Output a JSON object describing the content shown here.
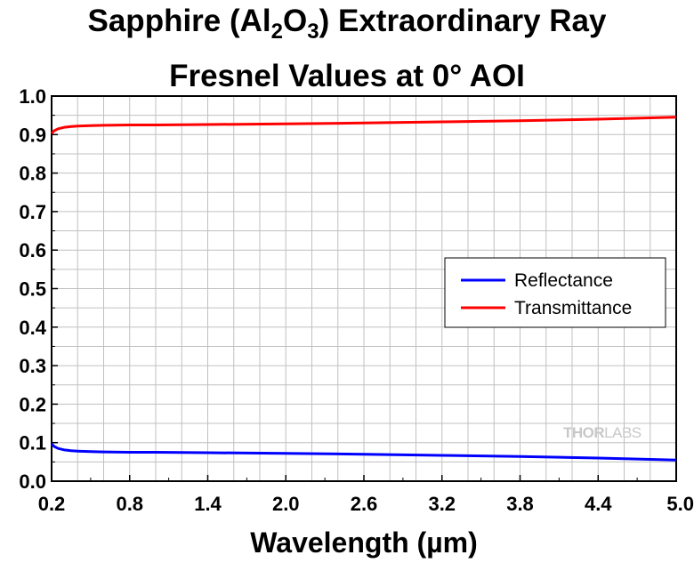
{
  "title": {
    "line1_prefix": "Sapphire (Al",
    "line1_sub1": "2",
    "line1_mid": "O",
    "line1_sub2": "3",
    "line1_suffix": ") Extraordinary Ray",
    "line2": "Fresnel Values at 0° AOI"
  },
  "watermark": {
    "part1": "THOR",
    "part2": "LABS"
  },
  "chart_data": {
    "type": "line",
    "xlabel": "Wavelength (µm)",
    "ylabel": "",
    "xlim": [
      0.2,
      5.0
    ],
    "ylim": [
      0.0,
      1.0
    ],
    "xticks": [
      "0.2",
      "0.8",
      "1.4",
      "2.0",
      "2.6",
      "3.2",
      "3.8",
      "4.4",
      "5.0"
    ],
    "yticks": [
      "0.0",
      "0.1",
      "0.2",
      "0.3",
      "0.4",
      "0.5",
      "0.6",
      "0.7",
      "0.8",
      "0.9",
      "1.0"
    ],
    "grid": true,
    "legend_position": "right",
    "series": [
      {
        "name": "Reflectance",
        "color": "#0000ff",
        "x": [
          0.2,
          0.22,
          0.25,
          0.3,
          0.35,
          0.4,
          0.5,
          0.6,
          0.8,
          1.0,
          1.4,
          2.0,
          2.6,
          3.2,
          3.8,
          4.4,
          5.0
        ],
        "y": [
          0.097,
          0.09,
          0.085,
          0.081,
          0.079,
          0.078,
          0.077,
          0.076,
          0.075,
          0.075,
          0.074,
          0.072,
          0.07,
          0.067,
          0.064,
          0.06,
          0.055
        ]
      },
      {
        "name": "Transmittance",
        "color": "#ff0000",
        "x": [
          0.2,
          0.22,
          0.25,
          0.3,
          0.35,
          0.4,
          0.5,
          0.6,
          0.8,
          1.0,
          1.4,
          2.0,
          2.6,
          3.2,
          3.8,
          4.4,
          5.0
        ],
        "y": [
          0.903,
          0.91,
          0.915,
          0.919,
          0.921,
          0.922,
          0.923,
          0.924,
          0.925,
          0.925,
          0.926,
          0.928,
          0.93,
          0.933,
          0.936,
          0.94,
          0.945
        ]
      }
    ]
  }
}
